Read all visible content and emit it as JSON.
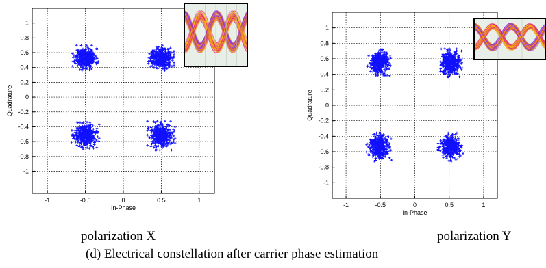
{
  "figure_caption": "(d) Electrical constellation after carrier phase estimation",
  "colors": {
    "points": "#1010ff",
    "grid": "#000000",
    "frame": "#000000",
    "plot_background": "#ffffff",
    "eye_background": "#e8eee8",
    "eye_traces": [
      "#f5c300",
      "#ff8a00",
      "#e02080",
      "#8a2be2"
    ]
  },
  "chart_data": [
    {
      "type": "scatter",
      "panel_caption": "polarization X",
      "xlabel": "In-Phase",
      "ylabel": "Quadrature",
      "title": "",
      "xlim": [
        -1.2,
        1.2
      ],
      "ylim": [
        -1.3,
        1.2
      ],
      "xticks": [
        -1,
        -0.5,
        0,
        0.5,
        1
      ],
      "yticks": [
        -1,
        -0.8,
        -0.6,
        -0.4,
        -0.2,
        0,
        0.2,
        0.4,
        0.6,
        0.8,
        1
      ],
      "grid": true,
      "grid_style": "dotted",
      "marker": "+",
      "clusters": [
        {
          "center": [
            -0.5,
            0.53
          ],
          "spread": [
            0.065,
            0.065
          ],
          "count": 420
        },
        {
          "center": [
            0.5,
            0.53
          ],
          "spread": [
            0.065,
            0.065
          ],
          "count": 420
        },
        {
          "center": [
            -0.5,
            -0.52
          ],
          "spread": [
            0.07,
            0.07
          ],
          "count": 420
        },
        {
          "center": [
            0.5,
            -0.52
          ],
          "spread": [
            0.07,
            0.075
          ],
          "count": 420
        }
      ],
      "inset": {
        "type": "eye-diagram",
        "placement": "top-right"
      }
    },
    {
      "type": "scatter",
      "panel_caption": "polarization Y",
      "xlabel": "In-Phase",
      "ylabel": "Quadrature",
      "title": "",
      "xlim": [
        -1.2,
        1.2
      ],
      "ylim": [
        -1.2,
        1.2
      ],
      "xticks": [
        -1,
        -0.5,
        0,
        0.5,
        1
      ],
      "yticks": [
        -1,
        -0.8,
        -0.6,
        -0.4,
        -0.2,
        0,
        0.2,
        0.4,
        0.6,
        0.8,
        1
      ],
      "grid": true,
      "grid_style": "dotted",
      "marker": "+",
      "clusters": [
        {
          "center": [
            -0.52,
            0.55
          ],
          "spread": [
            0.065,
            0.065
          ],
          "count": 420
        },
        {
          "center": [
            0.52,
            0.55
          ],
          "spread": [
            0.065,
            0.07
          ],
          "count": 420
        },
        {
          "center": [
            -0.52,
            -0.54
          ],
          "spread": [
            0.07,
            0.07
          ],
          "count": 420
        },
        {
          "center": [
            0.52,
            -0.54
          ],
          "spread": [
            0.07,
            0.07
          ],
          "count": 420
        }
      ],
      "inset": {
        "type": "eye-diagram",
        "placement": "top-right"
      }
    }
  ]
}
